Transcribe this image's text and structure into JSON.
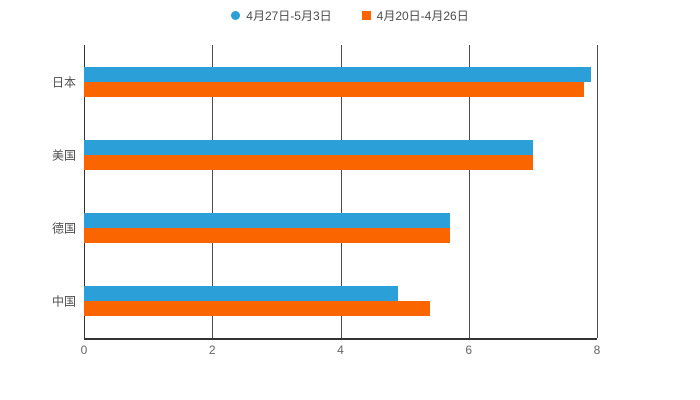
{
  "chart_data": {
    "type": "bar",
    "orientation": "horizontal",
    "title": "",
    "xlabel": "",
    "ylabel": "",
    "categories": [
      "日本",
      "美国",
      "德国",
      "中国"
    ],
    "series": [
      {
        "name": "4月27日-5月3日",
        "color": "#2a9fd8",
        "marker": "circle",
        "values": [
          7.9,
          7.0,
          5.7,
          4.9
        ]
      },
      {
        "name": "4月20日-4月26日",
        "color": "#fb6500",
        "marker": "square",
        "values": [
          7.8,
          7.0,
          5.7,
          5.4
        ]
      }
    ],
    "xlim": [
      0,
      8
    ],
    "xticks": [
      0,
      2,
      4,
      6,
      8
    ],
    "grid": true,
    "legend_position": "top"
  }
}
